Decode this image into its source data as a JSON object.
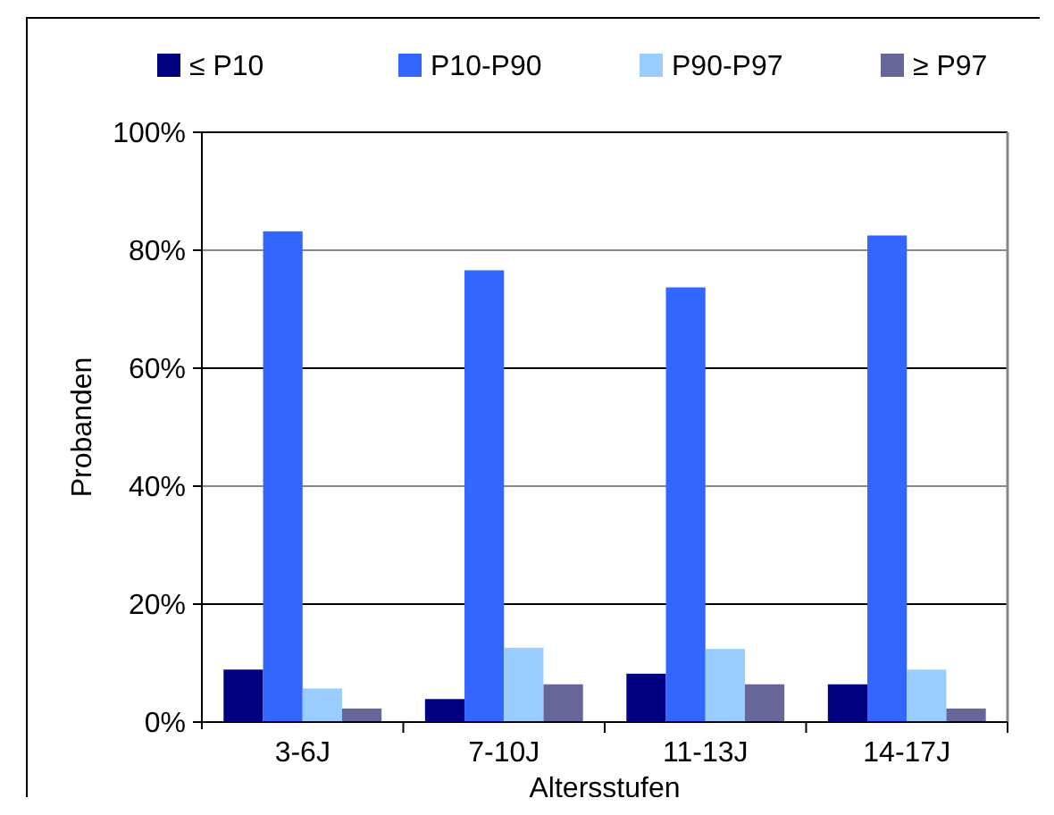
{
  "chart_data": {
    "type": "bar",
    "xlabel": "Altersstufen",
    "ylabel": "Probanden",
    "categories": [
      "3-6J",
      "7-10J",
      "11-13J",
      "14-17J"
    ],
    "series": [
      {
        "name": "≤ P10",
        "color": "#000080",
        "values": [
          8.9,
          3.9,
          8.2,
          6.4
        ]
      },
      {
        "name": "P10-P90",
        "color": "#3366ff",
        "values": [
          83.2,
          76.6,
          73.7,
          82.5
        ]
      },
      {
        "name": "P90-P97",
        "color": "#99ccff",
        "values": [
          5.7,
          12.6,
          12.4,
          8.9
        ]
      },
      {
        "name": "≥ P97",
        "color": "#666699",
        "values": [
          2.3,
          6.4,
          6.4,
          2.3
        ]
      }
    ],
    "ylim": [
      0,
      100
    ],
    "yticks": [
      {
        "value": 0,
        "label": "0%"
      },
      {
        "value": 20,
        "label": "20%"
      },
      {
        "value": 40,
        "label": "40%"
      },
      {
        "value": 60,
        "label": "60%"
      },
      {
        "value": 80,
        "label": "80%"
      },
      {
        "value": 100,
        "label": "100%"
      }
    ],
    "grid": "y",
    "legend": "top"
  }
}
